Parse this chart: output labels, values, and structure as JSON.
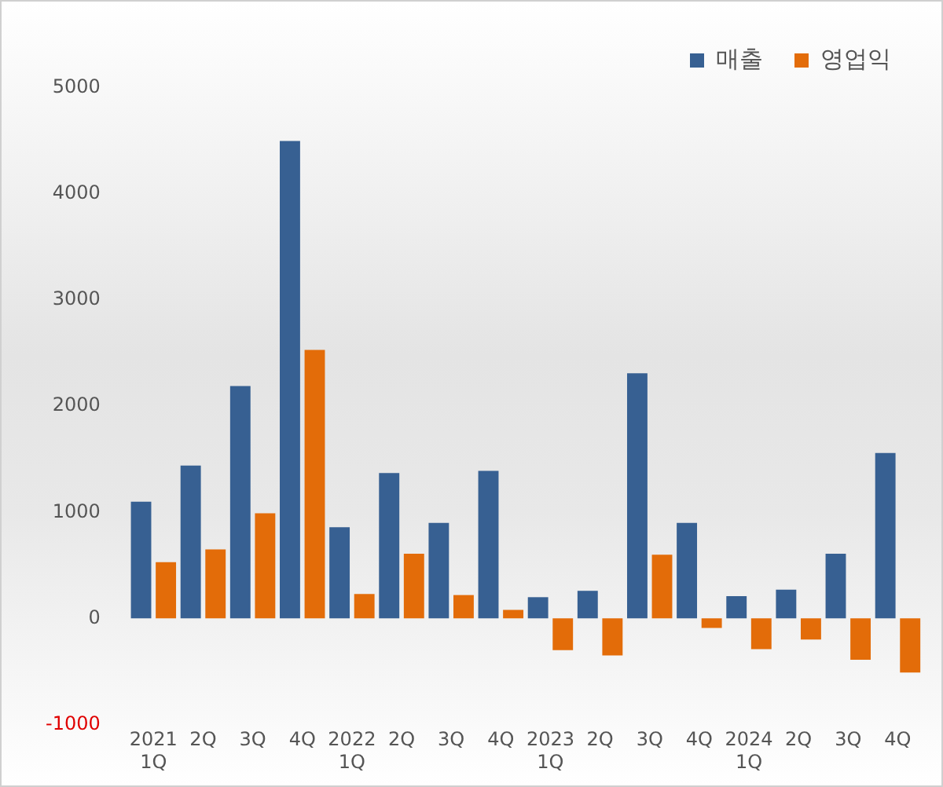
{
  "chart_data": {
    "type": "bar",
    "categories": [
      "2021\n1Q",
      "2Q",
      "3Q",
      "4Q",
      "2022\n1Q",
      "2Q",
      "3Q",
      "4Q",
      "2023\n1Q",
      "2Q",
      "3Q",
      "4Q",
      "2024\n1Q",
      "2Q",
      "3Q",
      "4Q"
    ],
    "series": [
      {
        "name": "매출",
        "color": "#376092",
        "values": [
          1100,
          1440,
          2190,
          4500,
          860,
          1370,
          900,
          1390,
          200,
          260,
          2310,
          900,
          210,
          270,
          610,
          1560
        ]
      },
      {
        "name": "영업익",
        "color": "#e36c09",
        "values": [
          530,
          650,
          990,
          2530,
          230,
          610,
          220,
          80,
          -300,
          -350,
          600,
          -90,
          -290,
          -200,
          -390,
          -510
        ]
      }
    ],
    "ylim": [
      -1000,
      5000
    ],
    "yticks": [
      -1000,
      0,
      1000,
      2000,
      3000,
      4000,
      5000
    ],
    "grid": false,
    "legend": "top right"
  }
}
